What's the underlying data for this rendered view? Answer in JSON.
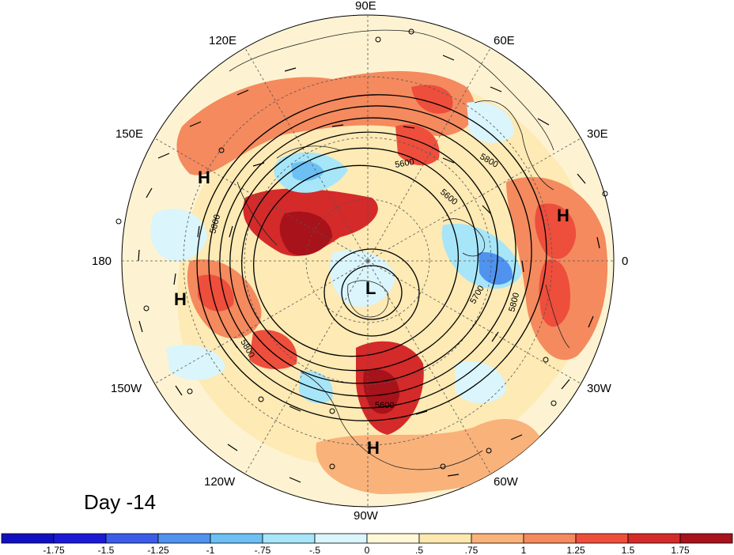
{
  "map": {
    "longitude_labels": {
      "lon_90E": "90E",
      "lon_60E": "60E",
      "lon_30E": "30E",
      "lon_0": "0",
      "lon_30W": "30W",
      "lon_60W": "60W",
      "lon_90W": "90W",
      "lon_120W": "120W",
      "lon_150W": "150W",
      "lon_180": "180",
      "lon_150E": "150E",
      "lon_120E": "120E"
    },
    "centers": [
      {
        "id": "high-1",
        "label": "H"
      },
      {
        "id": "high-2",
        "label": "H"
      },
      {
        "id": "high-3",
        "label": "H"
      },
      {
        "id": "high-4",
        "label": "H"
      },
      {
        "id": "low-1",
        "label": "L"
      }
    ],
    "contour_labels": [
      "5800",
      "5600",
      "5600",
      "5800",
      "5700",
      "5800",
      "5800",
      "5600"
    ]
  },
  "title": {
    "day_label": "Day -14"
  },
  "colorbar": {
    "tick_labels": [
      "-1.75",
      "-1.5",
      "-1.25",
      "-1",
      "-.75",
      "-.5",
      "0",
      ".5",
      ".75",
      "1",
      "1.25",
      "1.5",
      "1.75"
    ],
    "colors": [
      "#1a1ad6",
      "#3a5ce8",
      "#4f93ef",
      "#6cc0f4",
      "#a6e6f8",
      "#daf5fb",
      "#fff8d8",
      "#fde9b0",
      "#f9b27a",
      "#f48a5e",
      "#ee4e3c",
      "#d42a2a",
      "#a8121a"
    ]
  }
}
